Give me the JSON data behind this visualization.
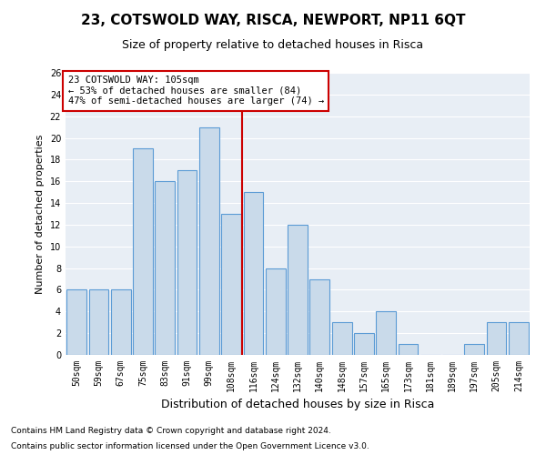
{
  "title": "23, COTSWOLD WAY, RISCA, NEWPORT, NP11 6QT",
  "subtitle": "Size of property relative to detached houses in Risca",
  "xlabel": "Distribution of detached houses by size in Risca",
  "ylabel": "Number of detached properties",
  "footnote1": "Contains HM Land Registry data © Crown copyright and database right 2024.",
  "footnote2": "Contains public sector information licensed under the Open Government Licence v3.0.",
  "bar_labels": [
    "50sqm",
    "59sqm",
    "67sqm",
    "75sqm",
    "83sqm",
    "91sqm",
    "99sqm",
    "108sqm",
    "116sqm",
    "124sqm",
    "132sqm",
    "140sqm",
    "148sqm",
    "157sqm",
    "165sqm",
    "173sqm",
    "181sqm",
    "189sqm",
    "197sqm",
    "205sqm",
    "214sqm"
  ],
  "bar_values": [
    6,
    6,
    6,
    19,
    16,
    17,
    21,
    13,
    15,
    8,
    12,
    7,
    3,
    2,
    4,
    1,
    0,
    0,
    1,
    3,
    3
  ],
  "bar_color": "#c9daea",
  "bar_edgecolor": "#5b9bd5",
  "ylim": [
    0,
    26
  ],
  "yticks": [
    0,
    2,
    4,
    6,
    8,
    10,
    12,
    14,
    16,
    18,
    20,
    22,
    24,
    26
  ],
  "property_line_x": 7.5,
  "property_line_color": "#cc0000",
  "annotation_line1": "23 COTSWOLD WAY: 105sqm",
  "annotation_line2": "← 53% of detached houses are smaller (84)",
  "annotation_line3": "47% of semi-detached houses are larger (74) →",
  "annotation_box_color": "#cc0000",
  "background_color": "#e8eef5",
  "title_fontsize": 11,
  "subtitle_fontsize": 9,
  "ylabel_fontsize": 8,
  "xlabel_fontsize": 9,
  "tick_fontsize": 7,
  "footnote_fontsize": 6.5,
  "annot_fontsize": 7.5
}
